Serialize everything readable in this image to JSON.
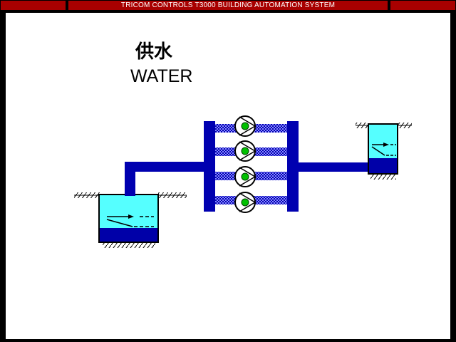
{
  "window": {
    "title": "TRICOM CONTROLS T3000 BUILDING AUTOMATION SYSTEM"
  },
  "diagram": {
    "title_cn": "供水",
    "title_en": "WATER",
    "pumps": [
      {
        "name": "pump-1",
        "status": "running"
      },
      {
        "name": "pump-2",
        "status": "running"
      },
      {
        "name": "pump-3",
        "status": "running"
      },
      {
        "name": "pump-4",
        "status": "running"
      }
    ],
    "colors": {
      "pipe": "#0000b0",
      "water_light": "#55ffff",
      "water_deep": "#0000a8",
      "pump_running": "#00c000",
      "titlebar": "#a80000"
    }
  }
}
